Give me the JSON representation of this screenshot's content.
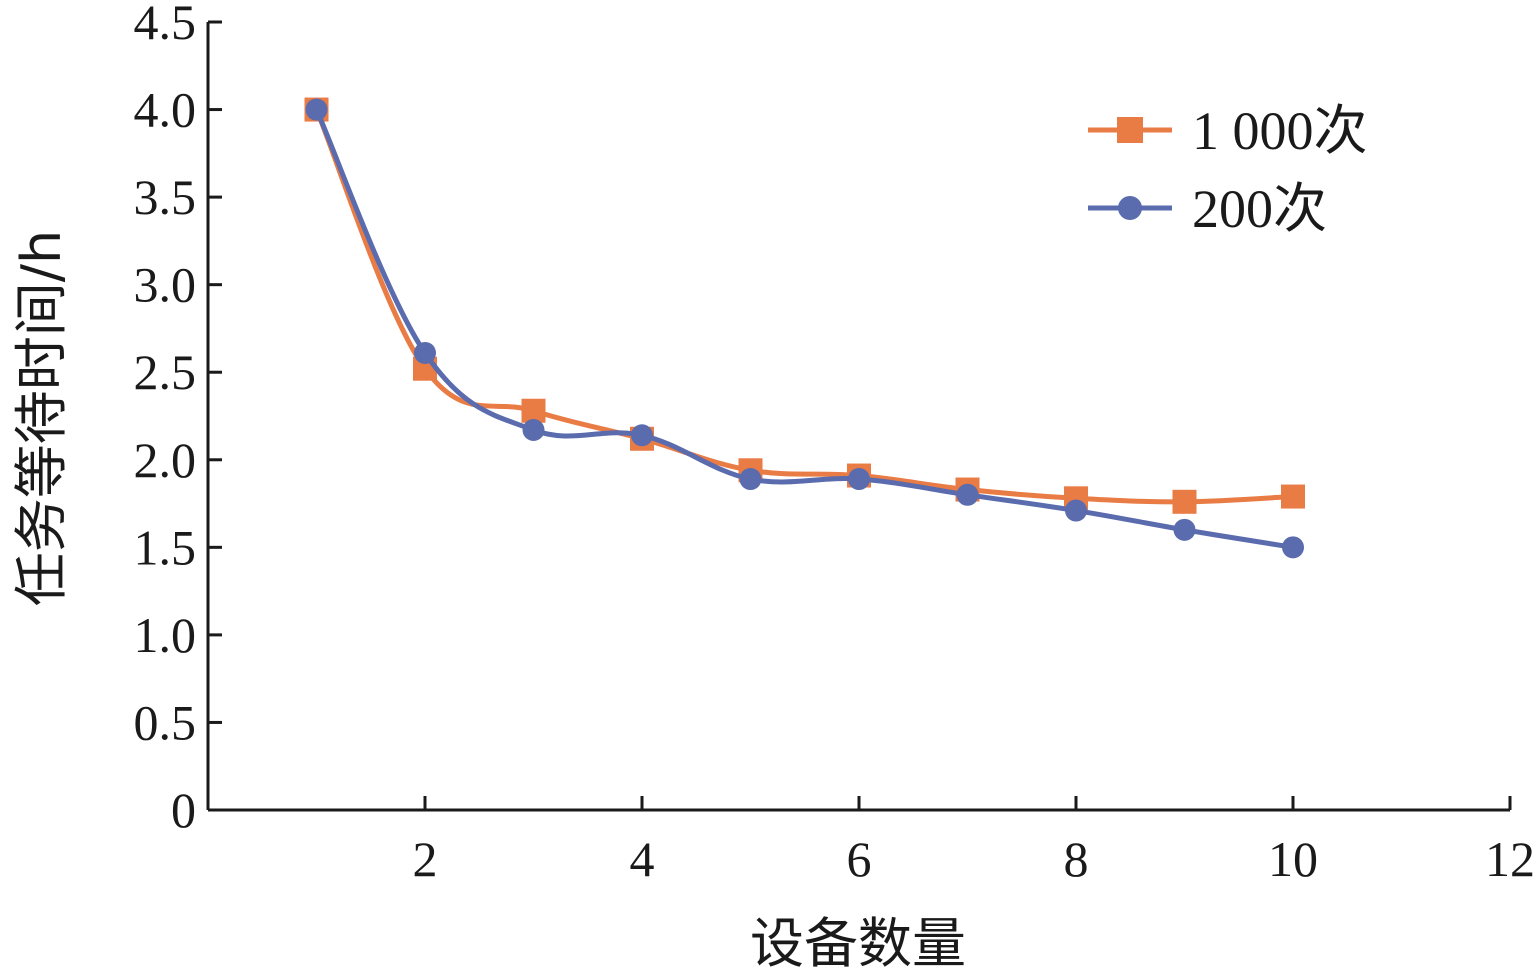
{
  "chart_data": {
    "type": "line",
    "xlabel": "设备数量",
    "ylabel": "任务等待时间/h",
    "xlim": [
      0,
      12
    ],
    "ylim": [
      0,
      4.5
    ],
    "xticks": [
      2,
      4,
      6,
      8,
      10,
      12
    ],
    "xtick_labels": [
      "2",
      "4",
      "6",
      "8",
      "10",
      "12"
    ],
    "yticks": [
      0,
      0.5,
      1.0,
      1.5,
      2.0,
      2.5,
      3.0,
      3.5,
      4.0,
      4.5
    ],
    "ytick_labels": [
      "0",
      "0.5",
      "1.0",
      "1.5",
      "2.0",
      "2.5",
      "3.0",
      "3.5",
      "4.0",
      "4.5"
    ],
    "grid": false,
    "legend_position": "top-right",
    "x": [
      1,
      2,
      3,
      4,
      5,
      6,
      7,
      8,
      9,
      10
    ],
    "series": [
      {
        "name": "1 000次",
        "marker": "square",
        "color": "#E97B45",
        "values": [
          4.0,
          2.52,
          2.28,
          2.12,
          1.94,
          1.91,
          1.83,
          1.78,
          1.76,
          1.79
        ]
      },
      {
        "name": "200次",
        "marker": "circle",
        "color": "#5A6BAE",
        "values": [
          4.0,
          2.61,
          2.17,
          2.14,
          1.89,
          1.89,
          1.8,
          1.71,
          1.6,
          1.5
        ]
      }
    ]
  }
}
